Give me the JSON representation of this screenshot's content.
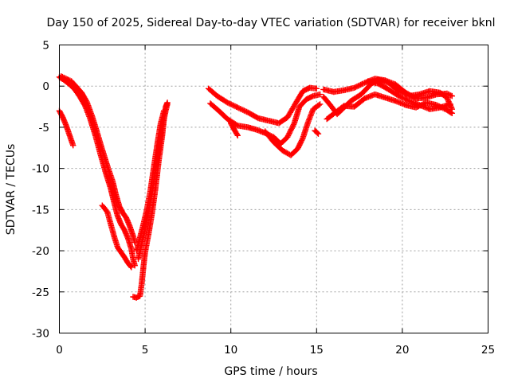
{
  "chart_data": {
    "type": "scatter",
    "title": "Day 150 of 2025, Sidereal Day-to-day VTEC variation (SDTVAR) for receiver bknl",
    "xlabel": "GPS time / hours",
    "ylabel": "SDTVAR / TECUs",
    "xlim": [
      0,
      25
    ],
    "ylim": [
      -30,
      5
    ],
    "xticks": [
      "0",
      "5",
      "10",
      "15",
      "20",
      "25"
    ],
    "yticks": [
      "5",
      "0",
      "-5",
      "-10",
      "-15",
      "-20",
      "-25",
      "-30"
    ],
    "xtick_values": [
      0,
      5,
      10,
      15,
      20,
      25
    ],
    "ytick_values": [
      5,
      0,
      -5,
      -10,
      -15,
      -20,
      -25,
      -30
    ],
    "grid": true,
    "marker": "+",
    "color": "#ff0000",
    "series": [
      {
        "name": "track-1",
        "points": [
          [
            0.0,
            1.1
          ],
          [
            0.3,
            0.7
          ],
          [
            0.6,
            0.2
          ],
          [
            0.9,
            -0.4
          ],
          [
            1.2,
            -1.3
          ],
          [
            1.5,
            -2.4
          ],
          [
            1.8,
            -4.0
          ],
          [
            2.1,
            -6.0
          ],
          [
            2.4,
            -8.3
          ],
          [
            2.7,
            -10.5
          ],
          [
            3.0,
            -12.5
          ],
          [
            3.2,
            -14.2
          ],
          [
            3.4,
            -15.8
          ],
          [
            3.6,
            -16.8
          ],
          [
            3.8,
            -17.5
          ],
          [
            4.0,
            -18.5
          ],
          [
            4.2,
            -19.8
          ],
          [
            4.3,
            -21.0
          ],
          [
            4.4,
            -21.8
          ]
        ]
      },
      {
        "name": "track-2",
        "points": [
          [
            0.1,
            1.2
          ],
          [
            0.4,
            0.9
          ],
          [
            0.7,
            0.6
          ],
          [
            1.0,
            -0.1
          ],
          [
            1.3,
            -0.8
          ],
          [
            1.6,
            -1.9
          ],
          [
            1.9,
            -3.6
          ],
          [
            2.2,
            -5.6
          ],
          [
            2.5,
            -7.7
          ],
          [
            2.8,
            -9.7
          ],
          [
            3.1,
            -11.5
          ],
          [
            3.3,
            -13.2
          ],
          [
            3.5,
            -14.6
          ],
          [
            3.7,
            -15.4
          ],
          [
            3.9,
            -16.0
          ],
          [
            4.1,
            -17.0
          ],
          [
            4.3,
            -18.2
          ],
          [
            4.4,
            -19.0
          ]
        ]
      },
      {
        "name": "track-3",
        "points": [
          [
            0.0,
            -3.0
          ],
          [
            0.2,
            -3.8
          ],
          [
            0.4,
            -4.8
          ],
          [
            0.6,
            -6.0
          ],
          [
            0.8,
            -7.2
          ]
        ]
      },
      {
        "name": "track-4",
        "points": [
          [
            2.5,
            -14.5
          ],
          [
            2.8,
            -15.3
          ],
          [
            3.0,
            -16.8
          ],
          [
            3.2,
            -18.3
          ],
          [
            3.4,
            -19.6
          ],
          [
            3.6,
            -20.2
          ],
          [
            3.8,
            -20.8
          ],
          [
            4.0,
            -21.5
          ],
          [
            4.2,
            -22.0
          ]
        ]
      },
      {
        "name": "track-5",
        "points": [
          [
            4.3,
            -25.6
          ],
          [
            4.5,
            -25.7
          ],
          [
            4.7,
            -25.5
          ],
          [
            4.8,
            -24.0
          ],
          [
            4.9,
            -22.0
          ],
          [
            5.0,
            -20.2
          ],
          [
            5.2,
            -18.0
          ],
          [
            5.4,
            -15.5
          ],
          [
            5.6,
            -12.5
          ],
          [
            5.8,
            -9.0
          ],
          [
            6.0,
            -6.0
          ],
          [
            6.1,
            -4.0
          ],
          [
            6.2,
            -2.5
          ],
          [
            6.3,
            -2.0
          ]
        ]
      },
      {
        "name": "track-6",
        "points": [
          [
            4.6,
            -21.0
          ],
          [
            4.8,
            -19.2
          ],
          [
            5.0,
            -17.4
          ],
          [
            5.2,
            -15.2
          ],
          [
            5.4,
            -13.0
          ],
          [
            5.6,
            -10.3
          ],
          [
            5.8,
            -7.6
          ],
          [
            6.0,
            -5.0
          ],
          [
            6.2,
            -3.0
          ],
          [
            6.3,
            -2.2
          ]
        ]
      },
      {
        "name": "track-7",
        "points": [
          [
            4.5,
            -20.0
          ],
          [
            4.7,
            -18.4
          ],
          [
            4.9,
            -16.8
          ],
          [
            5.1,
            -15.0
          ],
          [
            5.3,
            -12.8
          ],
          [
            5.5,
            -10.0
          ],
          [
            5.7,
            -7.2
          ],
          [
            5.9,
            -4.6
          ],
          [
            6.1,
            -3.0
          ]
        ]
      },
      {
        "name": "track-8",
        "points": [
          [
            8.7,
            -0.3
          ],
          [
            9.2,
            -1.2
          ],
          [
            9.8,
            -2.0
          ],
          [
            10.4,
            -2.6
          ],
          [
            11.0,
            -3.2
          ],
          [
            11.6,
            -3.9
          ],
          [
            12.2,
            -4.2
          ],
          [
            12.8,
            -4.5
          ],
          [
            13.3,
            -3.8
          ],
          [
            13.8,
            -2.0
          ],
          [
            14.2,
            -0.6
          ],
          [
            14.6,
            -0.2
          ],
          [
            15.0,
            -0.3
          ]
        ]
      },
      {
        "name": "track-9",
        "points": [
          [
            8.8,
            -2.1
          ],
          [
            9.3,
            -3.0
          ],
          [
            9.8,
            -4.0
          ],
          [
            10.4,
            -4.8
          ],
          [
            11.0,
            -5.0
          ],
          [
            11.5,
            -5.3
          ],
          [
            12.0,
            -5.7
          ],
          [
            12.5,
            -6.2
          ],
          [
            12.9,
            -7.0
          ],
          [
            13.3,
            -6.2
          ],
          [
            13.7,
            -4.5
          ],
          [
            14.0,
            -2.5
          ],
          [
            14.4,
            -1.6
          ],
          [
            14.8,
            -1.2
          ],
          [
            15.2,
            -1.0
          ]
        ]
      },
      {
        "name": "track-10",
        "points": [
          [
            10.0,
            -4.5
          ],
          [
            10.2,
            -5.3
          ],
          [
            10.4,
            -6.0
          ]
        ]
      },
      {
        "name": "track-11",
        "points": [
          [
            12.0,
            -5.5
          ],
          [
            12.5,
            -6.8
          ],
          [
            13.0,
            -7.8
          ],
          [
            13.5,
            -8.4
          ],
          [
            13.9,
            -7.6
          ],
          [
            14.2,
            -6.3
          ],
          [
            14.5,
            -4.4
          ],
          [
            14.8,
            -2.8
          ],
          [
            15.2,
            -2.2
          ]
        ]
      },
      {
        "name": "track-12",
        "points": [
          [
            14.9,
            -5.4
          ],
          [
            15.1,
            -5.8
          ]
        ]
      },
      {
        "name": "track-13",
        "points": [
          [
            15.4,
            -0.4
          ],
          [
            16.0,
            -0.7
          ],
          [
            16.6,
            -0.5
          ],
          [
            17.2,
            -0.2
          ],
          [
            17.8,
            0.4
          ],
          [
            18.4,
            0.9
          ],
          [
            19.0,
            0.7
          ],
          [
            19.6,
            0.2
          ],
          [
            20.2,
            -0.8
          ],
          [
            20.8,
            -1.5
          ],
          [
            21.4,
            -1.4
          ],
          [
            22.0,
            -1.0
          ],
          [
            22.6,
            -0.9
          ],
          [
            22.9,
            -1.2
          ]
        ]
      },
      {
        "name": "track-14",
        "points": [
          [
            15.4,
            -1.3
          ],
          [
            15.8,
            -2.3
          ],
          [
            16.2,
            -3.4
          ],
          [
            16.6,
            -2.6
          ],
          [
            17.0,
            -1.8
          ],
          [
            17.6,
            -1.0
          ],
          [
            18.2,
            0.3
          ],
          [
            18.6,
            0.8
          ],
          [
            19.2,
            0.4
          ],
          [
            19.8,
            -0.6
          ],
          [
            20.4,
            -1.2
          ],
          [
            21.0,
            -1.0
          ],
          [
            21.6,
            -0.6
          ],
          [
            22.2,
            -0.8
          ],
          [
            22.6,
            -1.4
          ],
          [
            22.9,
            -2.8
          ]
        ]
      },
      {
        "name": "track-15",
        "points": [
          [
            15.6,
            -4.0
          ],
          [
            16.1,
            -3.2
          ],
          [
            16.6,
            -2.4
          ],
          [
            17.2,
            -2.5
          ],
          [
            17.8,
            -1.5
          ],
          [
            18.4,
            -1.0
          ],
          [
            19.0,
            -1.4
          ],
          [
            19.6,
            -1.8
          ],
          [
            20.2,
            -2.3
          ],
          [
            20.8,
            -2.6
          ],
          [
            21.4,
            -2.0
          ],
          [
            22.0,
            -2.3
          ],
          [
            22.6,
            -2.9
          ],
          [
            22.9,
            -3.3
          ]
        ]
      },
      {
        "name": "track-16",
        "points": [
          [
            18.0,
            0.6
          ],
          [
            18.6,
            0.3
          ],
          [
            19.2,
            -0.4
          ],
          [
            19.8,
            -1.2
          ],
          [
            20.4,
            -1.8
          ],
          [
            21.0,
            -2.3
          ],
          [
            21.6,
            -2.8
          ],
          [
            22.2,
            -2.6
          ],
          [
            22.8,
            -2.2
          ]
        ]
      }
    ]
  }
}
